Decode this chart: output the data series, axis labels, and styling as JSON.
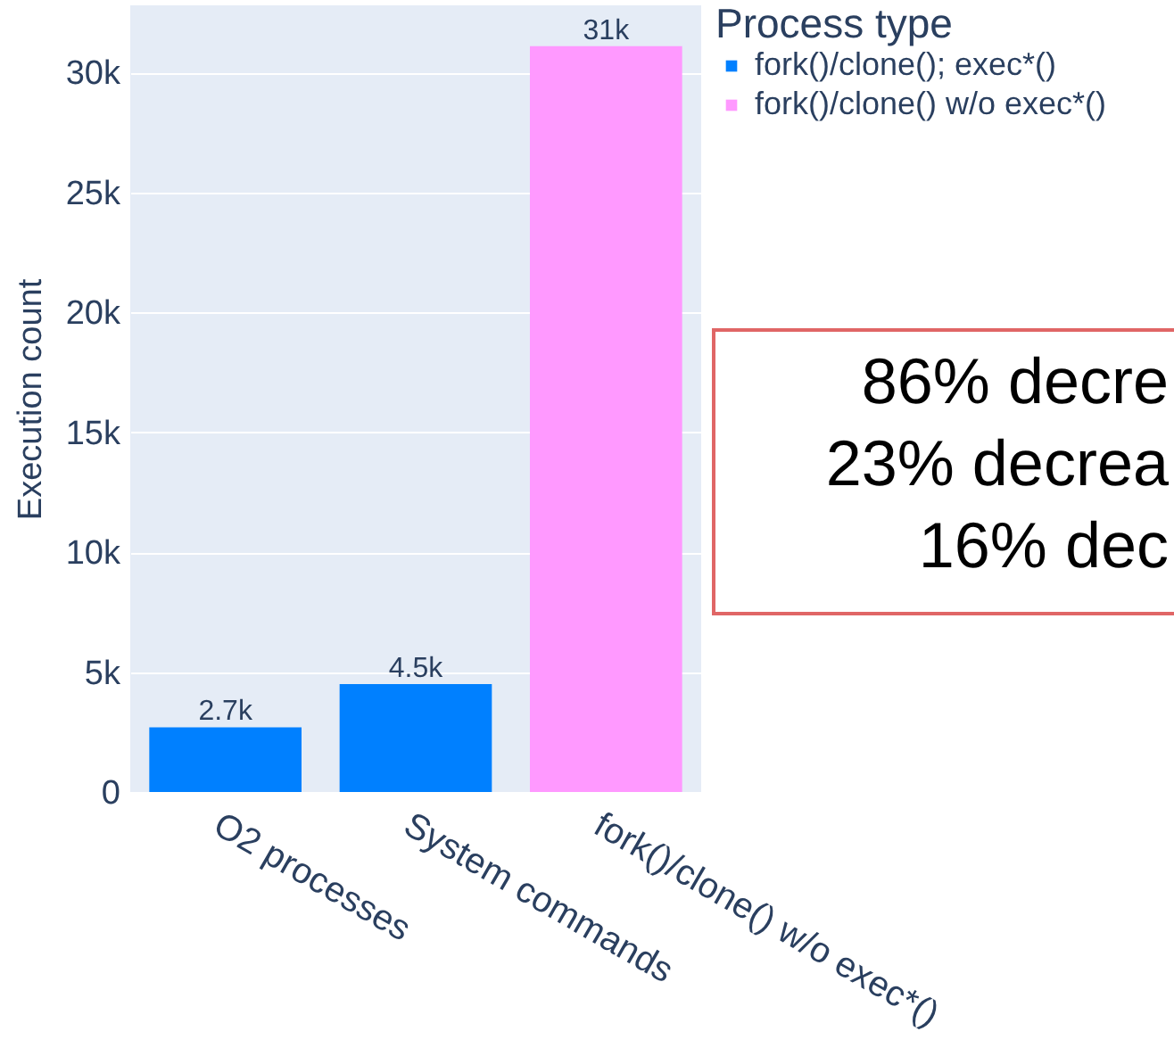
{
  "chart_data": {
    "type": "bar",
    "ylabel": "Execution count",
    "legend_title": "Process type",
    "legend": "right",
    "categories": [
      "O2 processes",
      "System commands",
      "fork()/clone() w/o exec*()"
    ],
    "series": [
      {
        "name": "fork()/clone(); exec*()",
        "color": "#0080ff",
        "values": [
          2700,
          4500,
          null
        ],
        "value_labels": [
          "2.7k",
          "4.5k",
          null
        ]
      },
      {
        "name": "fork()/clone() w/o exec*()",
        "color": "#ff99ff",
        "values": [
          null,
          null,
          31100
        ],
        "value_labels": [
          null,
          null,
          "31k"
        ]
      }
    ],
    "ylim": [
      0,
      32800
    ],
    "yticks": [
      0,
      {
        "value": 5000,
        "label": "5k"
      },
      {
        "value": 10000,
        "label": "10k"
      },
      {
        "value": 15000,
        "label": "15k"
      },
      {
        "value": 20000,
        "label": "20k"
      },
      {
        "value": 25000,
        "label": "25k"
      },
      {
        "value": 30000,
        "label": "30k"
      }
    ],
    "grid": "y",
    "annotations": [
      "86% decre",
      "23% decrea",
      "16% dec"
    ]
  }
}
